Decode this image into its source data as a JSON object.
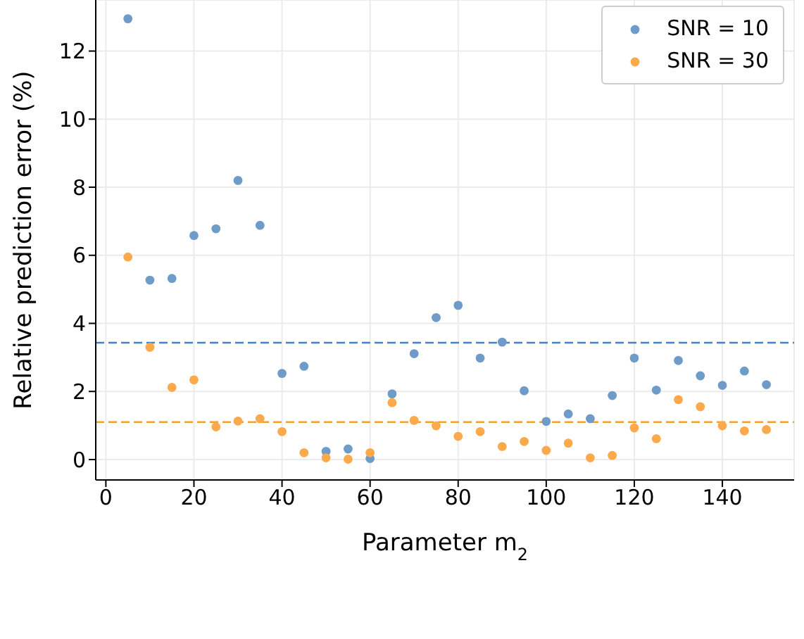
{
  "chart_data": {
    "type": "scatter",
    "xlabel": "Parameter m$_{2}$",
    "ylabel": "Relative prediction error (%)",
    "x": [
      5,
      10,
      15,
      20,
      25,
      30,
      35,
      40,
      45,
      50,
      55,
      60,
      65,
      70,
      75,
      80,
      85,
      90,
      95,
      100,
      105,
      110,
      115,
      120,
      125,
      130,
      135,
      140,
      145,
      150
    ],
    "series": [
      {
        "name": "SNR = 10",
        "color": "#6f9bc8",
        "values": [
          12.95,
          5.27,
          5.32,
          6.58,
          6.78,
          8.2,
          6.88,
          2.53,
          2.74,
          0.24,
          0.31,
          0.03,
          1.93,
          3.11,
          4.17,
          4.53,
          2.98,
          3.45,
          2.02,
          1.12,
          1.34,
          1.2,
          1.88,
          2.98,
          2.04,
          2.91,
          2.46,
          2.18,
          2.6,
          2.2
        ]
      },
      {
        "name": "SNR = 30",
        "color": "#fba94a",
        "values": [
          5.95,
          3.3,
          2.12,
          2.34,
          0.96,
          1.13,
          1.2,
          0.82,
          0.2,
          0.05,
          0.01,
          0.2,
          1.67,
          1.15,
          0.99,
          0.68,
          0.82,
          0.38,
          0.53,
          0.27,
          0.48,
          0.05,
          0.12,
          0.93,
          0.61,
          1.76,
          1.55,
          0.99,
          0.84,
          0.88
        ]
      }
    ],
    "ref_lines": [
      {
        "axis": "y",
        "value": 3.43,
        "color": "#3c82cc",
        "line_style": "dashed"
      },
      {
        "axis": "y",
        "value": 1.1,
        "color": "#f5a02c",
        "line_style": "dashed"
      }
    ],
    "xlim": [
      -2.3,
      156.3
    ],
    "xticks": [
      0,
      20,
      40,
      60,
      80,
      100,
      120,
      140
    ],
    "ylim": [
      -0.6,
      13.5
    ],
    "yticks": [
      0,
      2,
      4,
      6,
      8,
      10,
      12
    ],
    "grid": true,
    "legend": "top right",
    "marker": "circle"
  }
}
